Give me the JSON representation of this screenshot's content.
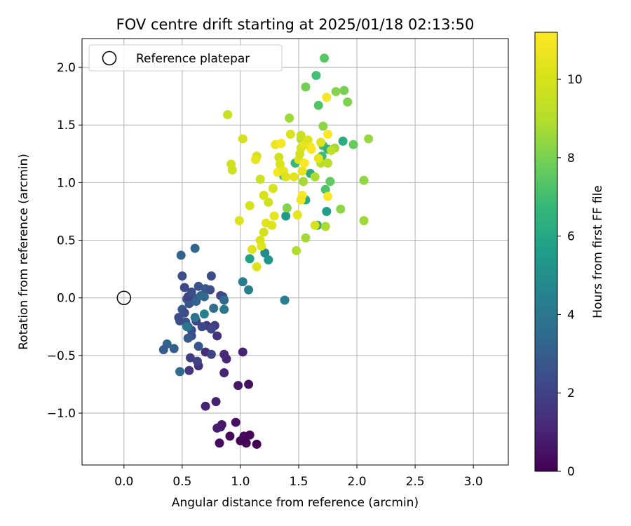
{
  "chart_data": {
    "type": "scatter",
    "title": "FOV centre drift starting at 2025/01/18 02:13:50",
    "xlabel": "Angular distance from reference (arcmin)",
    "ylabel": "Rotation from reference (arcmin)",
    "xlim": [
      -0.36,
      3.3
    ],
    "ylim": [
      -1.45,
      2.25
    ],
    "xticks": [
      0.0,
      0.5,
      1.0,
      1.5,
      2.0,
      2.5,
      3.0
    ],
    "xtick_labels": [
      "0.0",
      "0.5",
      "1.0",
      "1.5",
      "2.0",
      "2.5",
      "3.0"
    ],
    "yticks": [
      -1.0,
      -0.5,
      0.0,
      0.5,
      1.0,
      1.5,
      2.0
    ],
    "ytick_labels": [
      "−1.0",
      "−0.5",
      "0.0",
      "0.5",
      "1.0",
      "1.5",
      "2.0"
    ],
    "grid": true,
    "legend": {
      "position": "top-left",
      "entries": [
        "Reference platepar"
      ]
    },
    "reference_point": {
      "x": 0.0,
      "y": 0.0
    },
    "colorbar": {
      "label": "Hours from first FF file",
      "colormap": "viridis",
      "range": [
        0,
        11.2
      ],
      "ticks": [
        0,
        2,
        4,
        6,
        8,
        10
      ],
      "tick_labels": [
        "0",
        "2",
        "4",
        "6",
        "8",
        "10"
      ]
    },
    "series": [
      {
        "points": [
          [
            0.82,
            -1.26,
            0.3
          ],
          [
            0.84,
            -1.1,
            0.6
          ],
          [
            0.83,
            -1.12,
            0.7
          ],
          [
            0.91,
            -1.2,
            0.2
          ],
          [
            0.96,
            -1.08,
            0.4
          ],
          [
            1.0,
            -1.24,
            0.1
          ],
          [
            1.03,
            -1.2,
            0.3
          ],
          [
            1.05,
            -1.26,
            0.1
          ],
          [
            1.08,
            -1.19,
            0.2
          ],
          [
            1.14,
            -1.27,
            0.0
          ],
          [
            1.07,
            -0.75,
            0.5
          ],
          [
            0.98,
            -0.76,
            0.6
          ],
          [
            0.79,
            -0.9,
            0.9
          ],
          [
            0.7,
            -0.94,
            1.0
          ],
          [
            0.8,
            -1.13,
            0.8
          ],
          [
            0.86,
            -0.65,
            1.0
          ],
          [
            0.88,
            -0.53,
            1.1
          ],
          [
            0.86,
            -0.49,
            1.2
          ],
          [
            1.02,
            -0.47,
            1.0
          ],
          [
            0.7,
            -0.47,
            1.3
          ],
          [
            0.64,
            -0.59,
            1.4
          ],
          [
            0.8,
            -0.33,
            1.5
          ],
          [
            0.56,
            -0.63,
            1.6
          ],
          [
            0.57,
            -0.52,
            1.8
          ],
          [
            0.63,
            -0.55,
            2.0
          ],
          [
            0.75,
            -0.49,
            2.0
          ],
          [
            0.71,
            -0.24,
            1.7
          ],
          [
            0.78,
            -0.24,
            1.8
          ],
          [
            0.75,
            -0.27,
            2.1
          ],
          [
            0.67,
            -0.25,
            2.2
          ],
          [
            0.62,
            -0.2,
            2.0
          ],
          [
            0.58,
            -0.33,
            2.4
          ],
          [
            0.64,
            -0.42,
            2.7
          ],
          [
            0.55,
            -0.35,
            2.8
          ],
          [
            0.58,
            -0.28,
            2.5
          ],
          [
            0.53,
            -0.21,
            2.6
          ],
          [
            0.55,
            -0.25,
            3.0
          ],
          [
            0.47,
            -0.17,
            2.3
          ],
          [
            0.48,
            -0.2,
            2.5
          ],
          [
            0.5,
            -0.1,
            2.8
          ],
          [
            0.52,
            -0.13,
            2.4
          ],
          [
            0.56,
            -0.05,
            2.6
          ],
          [
            0.54,
            -0.01,
            2.9
          ],
          [
            0.6,
            0.0,
            2.7
          ],
          [
            0.62,
            -0.03,
            3.1
          ],
          [
            0.66,
            0.02,
            3.3
          ],
          [
            0.69,
            0.01,
            3.5
          ],
          [
            0.64,
            0.1,
            2.6
          ],
          [
            0.7,
            0.08,
            2.8
          ],
          [
            0.74,
            0.07,
            2.5
          ],
          [
            0.75,
            0.19,
            2.3
          ],
          [
            0.55,
            0.01,
            2.0
          ],
          [
            0.52,
            0.09,
            2.2
          ],
          [
            0.5,
            0.19,
            2.5
          ],
          [
            0.58,
            0.05,
            2.4
          ],
          [
            0.83,
            0.02,
            2.1
          ],
          [
            0.85,
            0.01,
            2.4
          ],
          [
            0.86,
            -0.02,
            3.5
          ],
          [
            0.86,
            -0.1,
            4.0
          ],
          [
            0.77,
            -0.09,
            3.6
          ],
          [
            0.69,
            -0.14,
            4.4
          ],
          [
            0.61,
            -0.17,
            3.8
          ],
          [
            0.54,
            -0.25,
            4.0
          ],
          [
            0.43,
            -0.44,
            3.0
          ],
          [
            0.37,
            -0.4,
            3.2
          ],
          [
            0.34,
            -0.45,
            2.9
          ],
          [
            0.48,
            -0.64,
            3.5
          ],
          [
            0.49,
            0.37,
            3.2
          ],
          [
            0.61,
            0.43,
            3.3
          ],
          [
            1.02,
            0.14,
            4.2
          ],
          [
            1.07,
            0.07,
            4.4
          ],
          [
            1.21,
            0.39,
            4.8
          ],
          [
            1.24,
            0.33,
            5.2
          ],
          [
            1.08,
            0.34,
            5.7
          ],
          [
            1.38,
            -0.02,
            4.3
          ],
          [
            1.39,
            0.71,
            5.4
          ],
          [
            1.74,
            0.75,
            5.6
          ],
          [
            1.66,
            0.63,
            5.8
          ],
          [
            1.56,
            0.85,
            6.1
          ],
          [
            1.37,
            1.06,
            6.8
          ],
          [
            1.47,
            1.17,
            6.7
          ],
          [
            1.6,
            1.08,
            6.3
          ],
          [
            1.7,
            1.23,
            6.9
          ],
          [
            1.71,
            1.32,
            7.0
          ],
          [
            1.75,
            1.29,
            6.5
          ],
          [
            1.88,
            1.36,
            6.2
          ],
          [
            1.73,
            0.94,
            7.2
          ],
          [
            1.77,
            1.01,
            7.6
          ],
          [
            1.67,
            1.67,
            7.3
          ],
          [
            1.65,
            1.93,
            7.0
          ],
          [
            1.72,
            2.08,
            7.4
          ],
          [
            1.56,
            1.83,
            7.9
          ],
          [
            1.82,
            1.79,
            8.2
          ],
          [
            1.89,
            1.8,
            8.0
          ],
          [
            1.92,
            1.7,
            8.1
          ],
          [
            1.97,
            1.33,
            7.7
          ],
          [
            2.06,
            1.02,
            8.4
          ],
          [
            2.1,
            1.38,
            8.5
          ],
          [
            2.06,
            0.67,
            8.6
          ],
          [
            1.86,
            0.77,
            8.3
          ],
          [
            1.73,
            0.62,
            8.8
          ],
          [
            1.56,
            0.52,
            8.7
          ],
          [
            1.48,
            0.41,
            8.9
          ],
          [
            1.4,
            0.78,
            8.2
          ],
          [
            1.42,
            1.56,
            8.6
          ],
          [
            1.71,
            1.49,
            8.3
          ],
          [
            1.52,
            1.38,
            8.9
          ],
          [
            1.54,
            1.01,
            8.7
          ],
          [
            1.64,
            1.05,
            8.8
          ],
          [
            1.69,
            1.17,
            9.0
          ],
          [
            1.81,
            1.3,
            8.7
          ],
          [
            1.78,
            1.28,
            9.2
          ],
          [
            1.75,
            1.17,
            9.1
          ],
          [
            0.89,
            1.59,
            9.6
          ],
          [
            0.92,
            1.16,
            9.8
          ],
          [
            0.93,
            1.11,
            9.7
          ],
          [
            0.99,
            0.67,
            10.2
          ],
          [
            1.02,
            1.38,
            9.9
          ],
          [
            1.08,
            0.8,
            10.0
          ],
          [
            1.1,
            0.42,
            10.3
          ],
          [
            1.14,
            0.27,
            10.2
          ],
          [
            1.14,
            1.23,
            9.9
          ],
          [
            1.13,
            1.2,
            10.5
          ],
          [
            1.17,
            1.03,
            9.7
          ],
          [
            1.17,
            0.5,
            10.1
          ],
          [
            1.18,
            0.45,
            10.3
          ],
          [
            1.2,
            0.89,
            10.1
          ],
          [
            1.2,
            0.57,
            9.9
          ],
          [
            1.22,
            0.65,
            10.4
          ],
          [
            1.24,
            0.83,
            9.8
          ],
          [
            1.27,
            0.63,
            10.2
          ],
          [
            1.28,
            0.95,
            10.0
          ],
          [
            1.29,
            0.71,
            10.5
          ],
          [
            1.3,
            1.33,
            10.6
          ],
          [
            1.32,
            1.09,
            11.0
          ],
          [
            1.33,
            1.22,
            9.8
          ],
          [
            1.34,
            1.16,
            10.2
          ],
          [
            1.35,
            1.34,
            11.0
          ],
          [
            1.37,
            1.1,
            10.6
          ],
          [
            1.39,
            1.05,
            10.3
          ],
          [
            1.43,
            1.42,
            10.1
          ],
          [
            1.46,
            1.05,
            10.4
          ],
          [
            1.49,
            0.72,
            10.5
          ],
          [
            1.5,
            1.2,
            10.2
          ],
          [
            1.51,
            1.25,
            9.9
          ],
          [
            1.52,
            1.41,
            9.6
          ],
          [
            1.52,
            1.3,
            10.0
          ],
          [
            1.53,
            1.1,
            10.6
          ],
          [
            1.53,
            0.89,
            11.1
          ],
          [
            1.52,
            0.85,
            10.8
          ],
          [
            1.55,
            1.33,
            10.5
          ],
          [
            1.55,
            1.17,
            11.2
          ],
          [
            1.58,
            1.37,
            10.3
          ],
          [
            1.6,
            1.31,
            10.7
          ],
          [
            1.61,
            1.29,
            11.1
          ],
          [
            1.64,
            0.63,
            10.0
          ],
          [
            1.67,
            1.21,
            10.5
          ],
          [
            1.74,
            1.74,
            11.0
          ],
          [
            1.75,
            1.42,
            11.1
          ],
          [
            1.75,
            0.88,
            11.2
          ],
          [
            1.69,
            1.35,
            10.3
          ]
        ]
      }
    ]
  }
}
